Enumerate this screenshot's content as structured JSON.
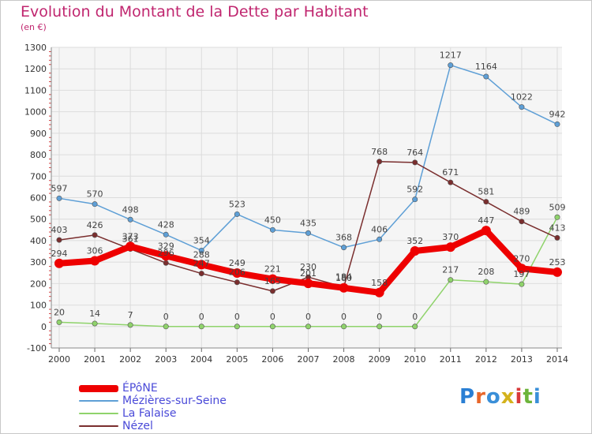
{
  "chart_data": {
    "type": "line",
    "title": "Evolution du Montant de la Dette par Habitant",
    "subtitle": "(en €)",
    "xlabel": "",
    "ylabel": "",
    "categories": [
      "2000",
      "2001",
      "2002",
      "2003",
      "2004",
      "2005",
      "2006",
      "2007",
      "2008",
      "2009",
      "2010",
      "2011",
      "2012",
      "2013",
      "2014"
    ],
    "ylim": [
      -100,
      1300
    ],
    "yticks": [
      -100,
      0,
      100,
      200,
      300,
      400,
      500,
      600,
      700,
      800,
      900,
      1000,
      1100,
      1200,
      1300
    ],
    "grid": true,
    "legend_position": "bottom-left",
    "series": [
      {
        "name": "ÉPôNE",
        "color": "#ee0000",
        "values": [
          294,
          306,
          373,
          329,
          288,
          249,
          221,
          201,
          180,
          158,
          352,
          370,
          447,
          270,
          253
        ],
        "labels": [
          "294",
          "306",
          "373",
          "329",
          "288",
          "249",
          "221",
          "201",
          "180",
          "158",
          "352",
          "370",
          "447",
          "270",
          "253"
        ]
      },
      {
        "name": "Mézières-sur-Seine",
        "color": "#5e9fd6",
        "values": [
          597,
          570,
          498,
          428,
          354,
          523,
          450,
          435,
          368,
          406,
          592,
          1217,
          1164,
          1022,
          942
        ],
        "labels": [
          "597",
          "570",
          "498",
          "428",
          "354",
          "523",
          "450",
          "435",
          "368",
          "406",
          "592",
          "1217",
          "1164",
          "1022",
          "942"
        ]
      },
      {
        "name": "La Falaise",
        "color": "#8fd36b",
        "values": [
          20,
          14,
          7,
          0,
          0,
          0,
          0,
          0,
          0,
          0,
          0,
          217,
          208,
          197,
          509
        ],
        "labels": [
          "20",
          "14",
          "7",
          "0",
          "0",
          "0",
          "0",
          "0",
          "0",
          "0",
          "0",
          "217",
          "208",
          "197",
          "509"
        ]
      },
      {
        "name": "Nézel",
        "color": "#7a2e2e",
        "values": [
          403,
          426,
          361,
          296,
          247,
          206,
          165,
          230,
          184,
          768,
          764,
          671,
          581,
          489,
          413
        ],
        "labels": [
          "403",
          "426",
          "361",
          "296",
          "247",
          "206",
          "165",
          "230",
          "184",
          "768",
          "764",
          "671",
          "581",
          "489",
          "413"
        ]
      }
    ]
  },
  "brand": {
    "text": "Proxiti",
    "letters": [
      "P",
      "r",
      "o",
      "x",
      "i",
      "t",
      "i"
    ],
    "colors": [
      "#2a7fd4",
      "#e8672a",
      "#3a8fd8",
      "#d4b21c",
      "#d83a3a",
      "#6cb43a",
      "#3a8fd8"
    ]
  }
}
